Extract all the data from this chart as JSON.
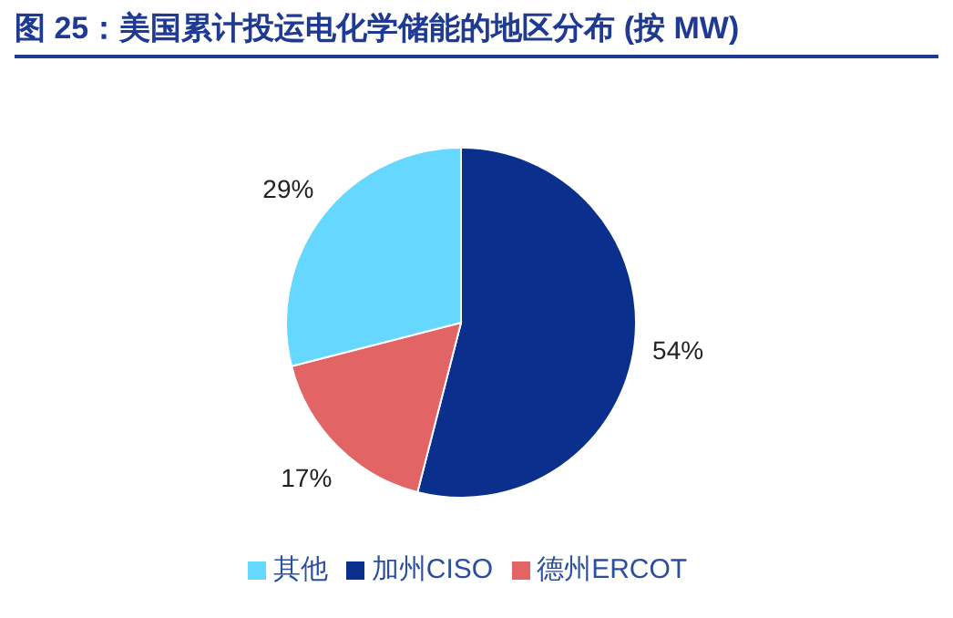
{
  "chart_data": {
    "type": "pie",
    "title": "图 25：美国累计投运电化学储能的地区分布 (按 MW)",
    "categories": [
      "加州CISO",
      "德州ERCOT",
      "其他"
    ],
    "values": [
      54,
      17,
      29
    ],
    "colors": [
      "#0a2f8c",
      "#e36464",
      "#66d7ff"
    ],
    "value_labels": [
      "54%",
      "17%",
      "29%"
    ],
    "legend": "bottom"
  }
}
